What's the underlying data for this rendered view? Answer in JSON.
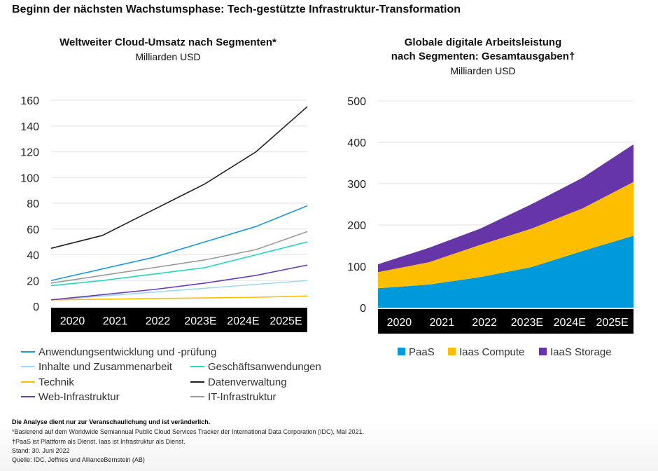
{
  "header": {
    "title": "Beginn der nächsten Wachstumsphase: Tech-gestützte Infrastruktur-Transformation"
  },
  "chart_data": [
    {
      "type": "line",
      "title": "Weltweiter Cloud-Umsatz nach Segmenten*",
      "subtitle": "Milliarden USD",
      "categories": [
        "2020",
        "2021",
        "2022",
        "2023E",
        "2024E",
        "2025E"
      ],
      "ylim": [
        0,
        160
      ],
      "yticks": [
        0,
        20,
        40,
        60,
        80,
        100,
        120,
        140,
        160
      ],
      "grid": true,
      "legend_placement": "bottom",
      "series": [
        {
          "name": "Anwendungsentwicklung und -prüfung",
          "color": "#1a9be0",
          "values": [
            20,
            29,
            38,
            50,
            62,
            78
          ]
        },
        {
          "name": "Inhalte und Zusammenarbeit",
          "color": "#9fd8f2",
          "values": [
            5,
            8,
            11,
            14,
            17,
            20
          ]
        },
        {
          "name": "Geschäftsanwendungen",
          "color": "#1ed8c0",
          "values": [
            16,
            20,
            25,
            30,
            40,
            50
          ]
        },
        {
          "name": "Technik",
          "color": "#fdbe00",
          "values": [
            5,
            5.5,
            6,
            6.5,
            7,
            8
          ]
        },
        {
          "name": "Datenverwaltung",
          "color": "#222222",
          "values": [
            45,
            55,
            75,
            95,
            120,
            155
          ]
        },
        {
          "name": "Web-Infrastruktur",
          "color": "#6a3fb5",
          "values": [
            5,
            9,
            13,
            18,
            24,
            32
          ]
        },
        {
          "name": "IT-Infrastruktur",
          "color": "#999999",
          "values": [
            18,
            24,
            30,
            36,
            44,
            58
          ]
        }
      ]
    },
    {
      "type": "area",
      "stacked": true,
      "title": "Globale digitale Arbeitsleistung",
      "title_line2": "nach Segmenten: Gesamtausgaben†",
      "subtitle": "Milliarden USD",
      "categories": [
        "2020",
        "2021",
        "2022",
        "2023E",
        "2024E",
        "2025E"
      ],
      "ylim": [
        0,
        500
      ],
      "yticks": [
        0,
        100,
        200,
        300,
        400,
        500
      ],
      "grid": true,
      "legend_placement": "bottom",
      "series": [
        {
          "name": "PaaS",
          "color": "#009adb",
          "values": [
            47,
            56,
            74,
            98,
            137,
            174
          ]
        },
        {
          "name": "Iaas Compute",
          "color": "#fdbe00",
          "values": [
            39,
            54,
            78,
            93,
            103,
            130
          ]
        },
        {
          "name": "IaaS Storage",
          "color": "#6636a8",
          "values": [
            19,
            35,
            39,
            59,
            74,
            91
          ]
        }
      ]
    }
  ],
  "footer": {
    "disclaimer": "Die Analyse dient nur zur Veranschaulichung und ist veränderlich.",
    "note1": "*Basierend auf dem Worldwide Semiannual Public Cloud Services Tracker der International Data Corporation (IDC), Mai 2021.",
    "note2": "†PaaS ist Plattform als Dienst. Iaas ist Infrastruktur als Dienst.",
    "date": "Stand: 30. Juni 2022",
    "source": "Quelle: IDC, Jeffries und AllianceBernstein (AB)"
  }
}
